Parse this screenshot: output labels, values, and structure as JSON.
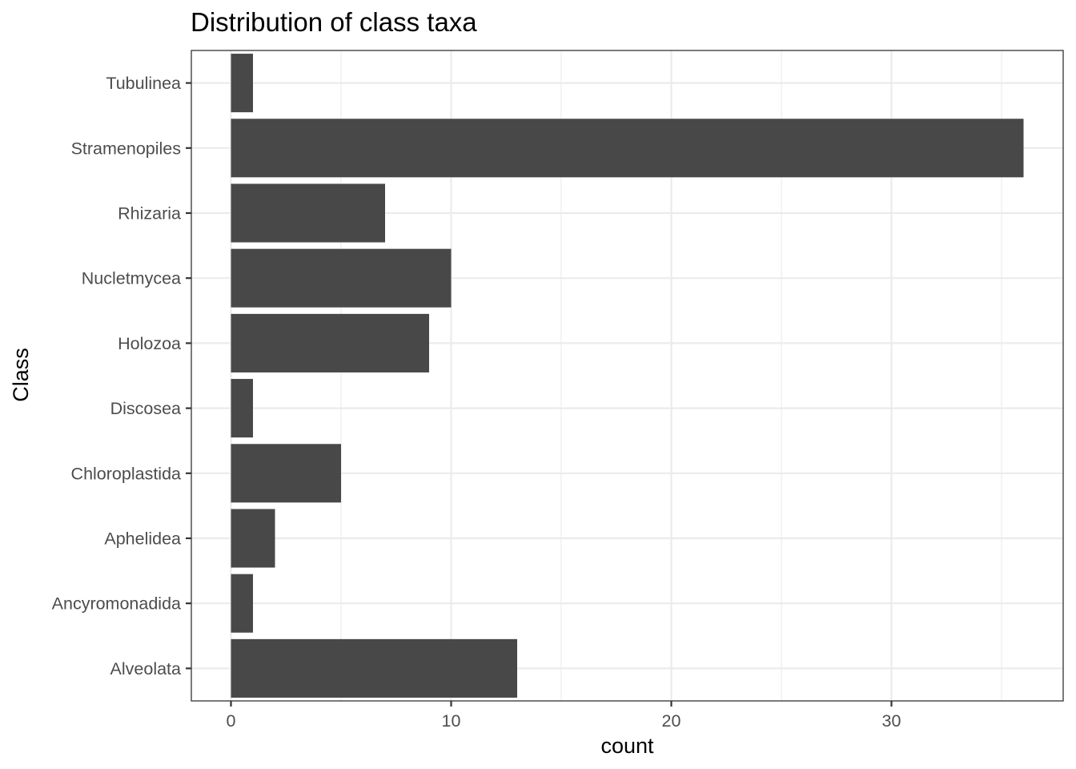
{
  "chart_data": {
    "type": "bar",
    "orientation": "horizontal",
    "title": "Distribution of class taxa",
    "xlabel": "count",
    "ylabel": "Class",
    "categories": [
      "Alveolata",
      "Ancyromonadida",
      "Aphelidea",
      "Chloroplastida",
      "Discosea",
      "Holozoa",
      "Nucletmycea",
      "Rhizaria",
      "Stramenopiles",
      "Tubulinea"
    ],
    "values": [
      13,
      1,
      2,
      5,
      1,
      9,
      10,
      7,
      36,
      1
    ],
    "xlim": [
      -1.8,
      37.8
    ],
    "xticks": [
      0,
      10,
      20,
      30
    ],
    "xtick_labels": [
      "0",
      "10",
      "20",
      "30"
    ],
    "grid": true,
    "legend": "none",
    "colors": {
      "bar": "#484848",
      "grid": "#ebebeb",
      "panel_border": "#333333",
      "tick_text": "#4d4d4d"
    }
  }
}
